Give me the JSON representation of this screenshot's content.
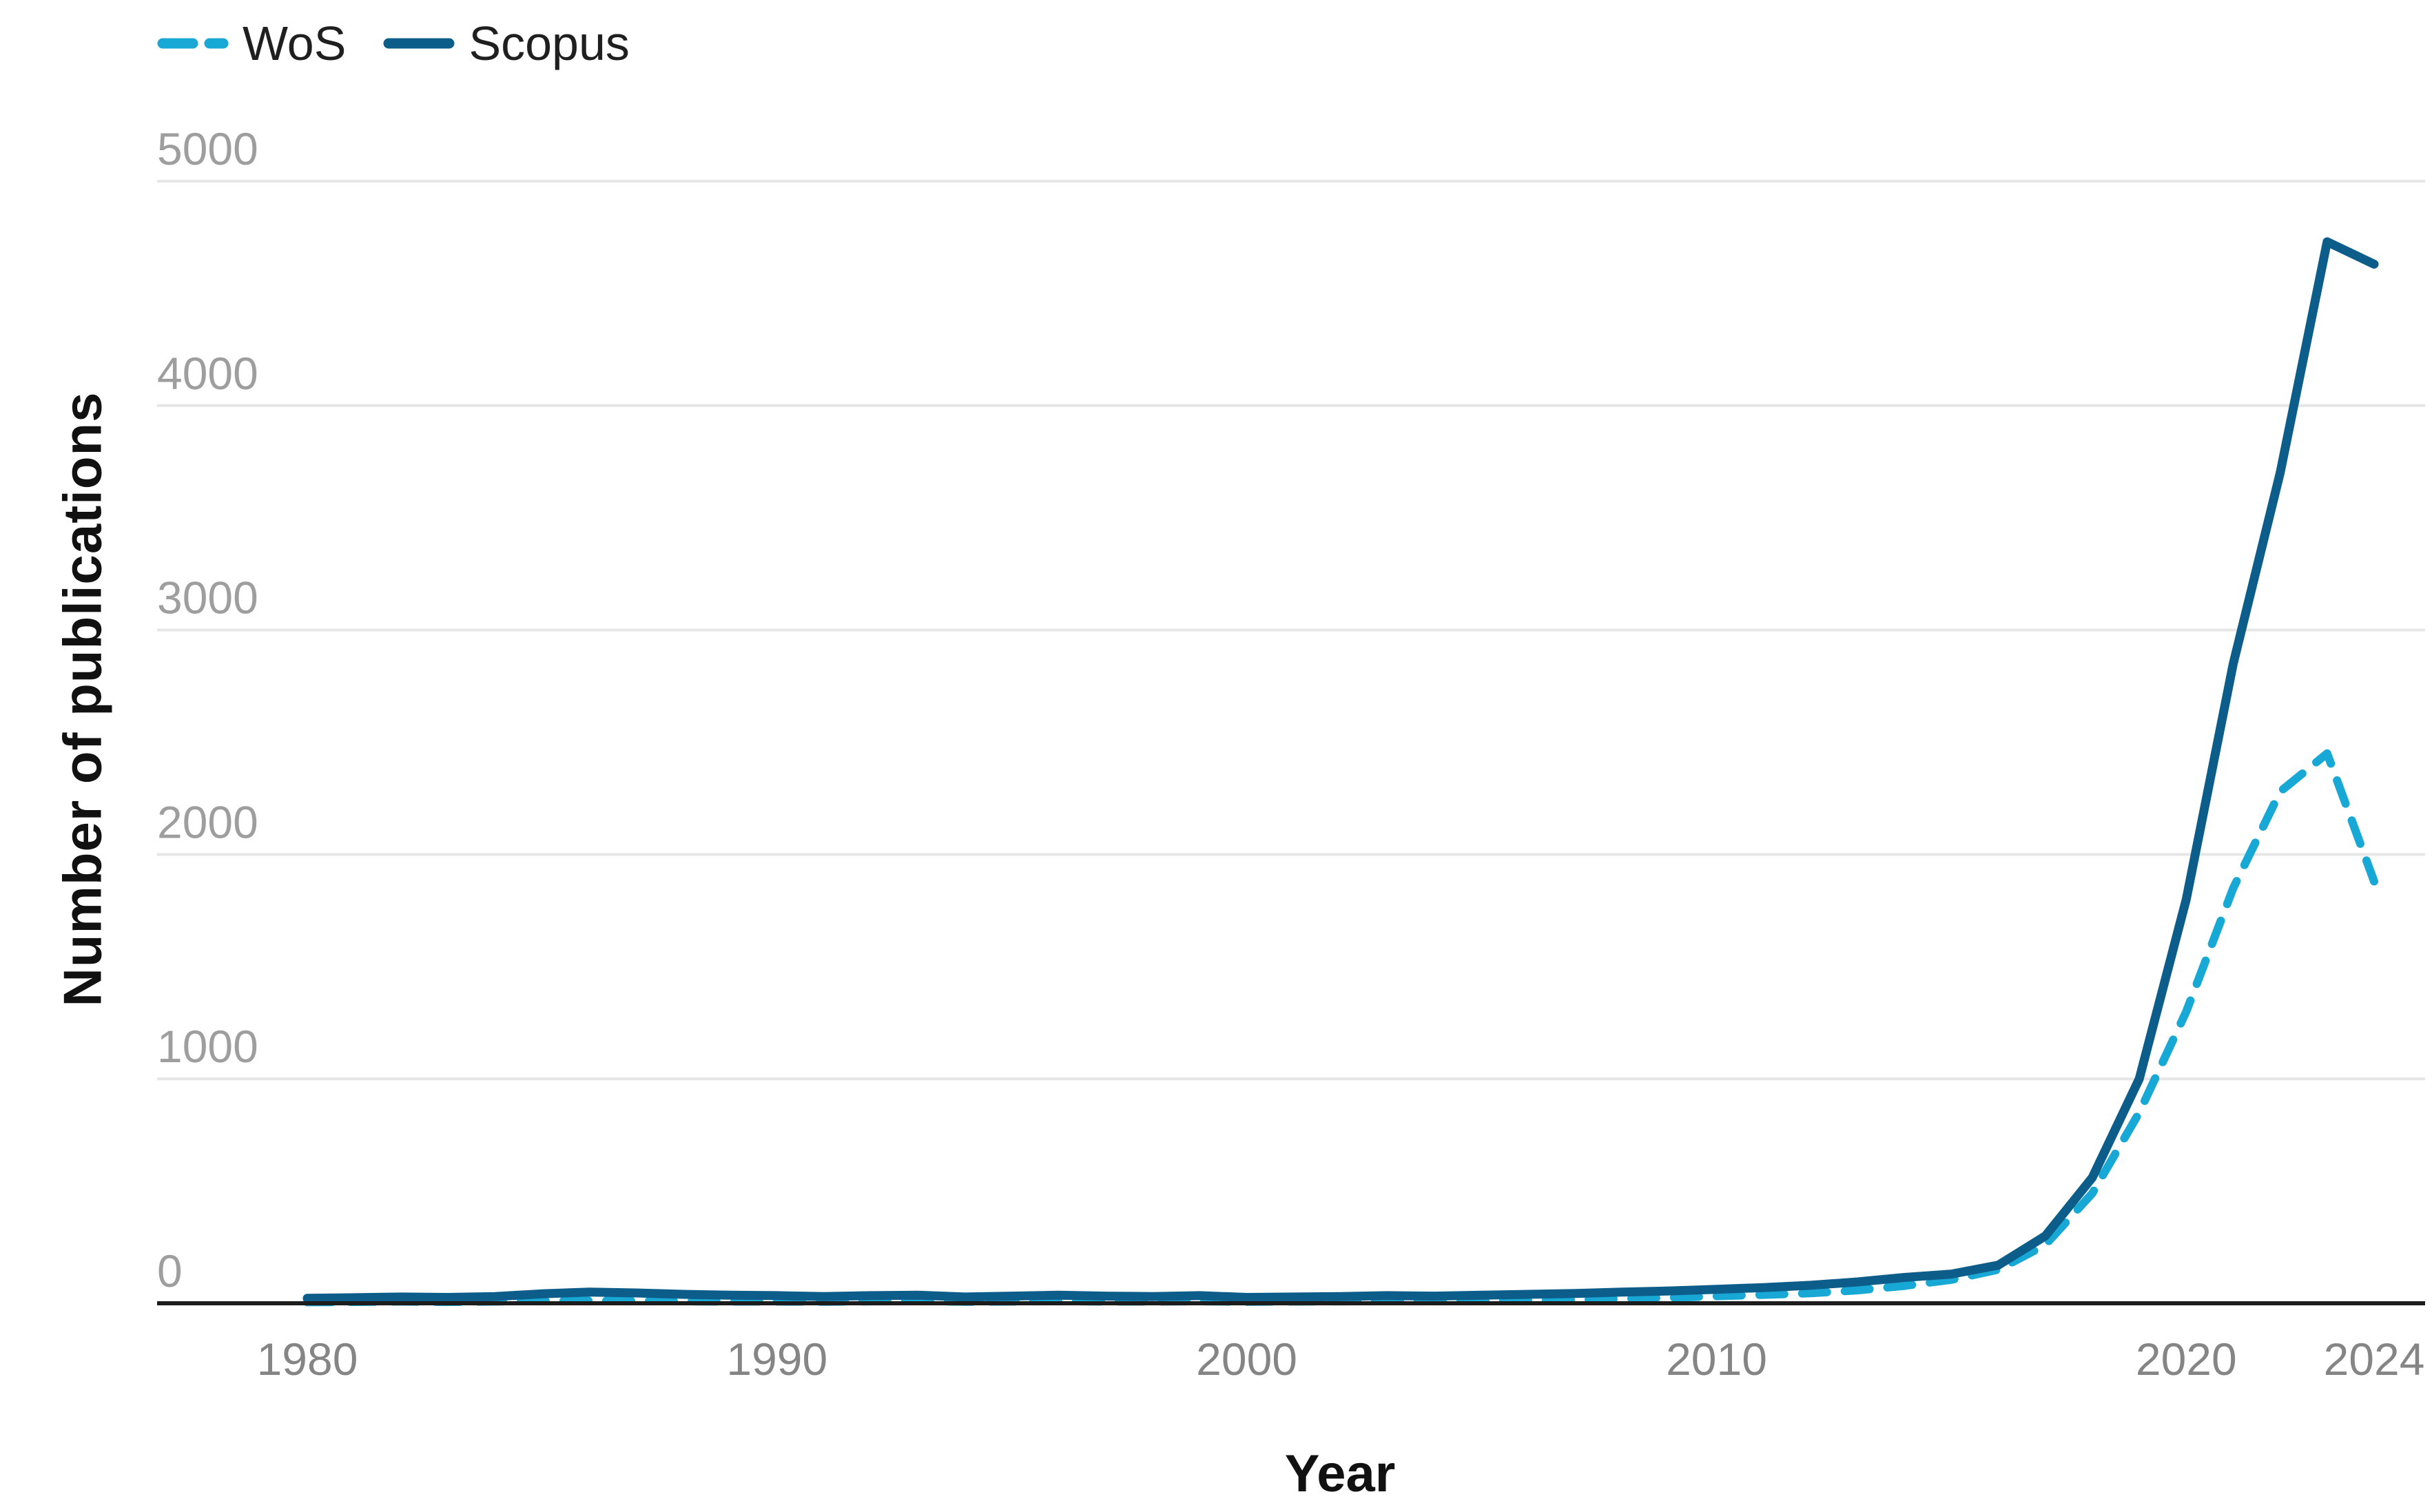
{
  "chart_data": {
    "type": "line",
    "title": "",
    "xlabel": "Year",
    "ylabel": "Number of publications",
    "xlim": [
      1980,
      2024
    ],
    "ylim": [
      0,
      5000
    ],
    "x_ticks": [
      1980,
      1990,
      2000,
      2010,
      2020,
      2024
    ],
    "y_ticks": [
      0,
      1000,
      2000,
      3000,
      4000,
      5000
    ],
    "grid": true,
    "legend_position": "top-left",
    "x": [
      1980,
      1981,
      1982,
      1983,
      1984,
      1985,
      1986,
      1987,
      1988,
      1989,
      1990,
      1991,
      1992,
      1993,
      1994,
      1995,
      1996,
      1997,
      1998,
      1999,
      2000,
      2001,
      2002,
      2003,
      2004,
      2005,
      2006,
      2007,
      2008,
      2009,
      2010,
      2011,
      2012,
      2013,
      2014,
      2015,
      2016,
      2017,
      2018,
      2019,
      2020,
      2021,
      2022,
      2023,
      2024
    ],
    "series": [
      {
        "name": "WoS",
        "style": "dashed",
        "color": "#17a8d5",
        "values": [
          5,
          6,
          8,
          6,
          8,
          10,
          12,
          10,
          9,
          8,
          8,
          7,
          9,
          10,
          7,
          8,
          10,
          8,
          8,
          9,
          7,
          8,
          9,
          10,
          10,
          12,
          14,
          16,
          20,
          25,
          32,
          38,
          45,
          58,
          78,
          105,
          150,
          260,
          490,
          850,
          1300,
          1850,
          2280,
          2450,
          1880
        ]
      },
      {
        "name": "Scopus",
        "style": "solid",
        "color": "#0d5d8b",
        "values": [
          22,
          25,
          28,
          26,
          30,
          42,
          50,
          46,
          40,
          36,
          34,
          30,
          34,
          36,
          28,
          32,
          36,
          32,
          30,
          34,
          26,
          28,
          30,
          34,
          32,
          36,
          40,
          44,
          50,
          55,
          62,
          70,
          80,
          95,
          115,
          130,
          170,
          300,
          560,
          1000,
          1800,
          2850,
          3700,
          4730,
          4630
        ]
      }
    ]
  },
  "axes": {
    "y_tick_labels": [
      "0",
      "1000",
      "2000",
      "3000",
      "4000",
      "5000"
    ],
    "x_tick_labels": [
      "1980",
      "1990",
      "2000",
      "2010",
      "2020",
      "2024"
    ]
  },
  "colors": {
    "background": "#ffffff",
    "gridline": "#e6e6e6",
    "axis_line": "#1c1c1c",
    "y_tick_text": "#9e9e9e",
    "x_tick_text": "#858585",
    "wos": "#17a8d5",
    "scopus": "#0d5d8b"
  }
}
